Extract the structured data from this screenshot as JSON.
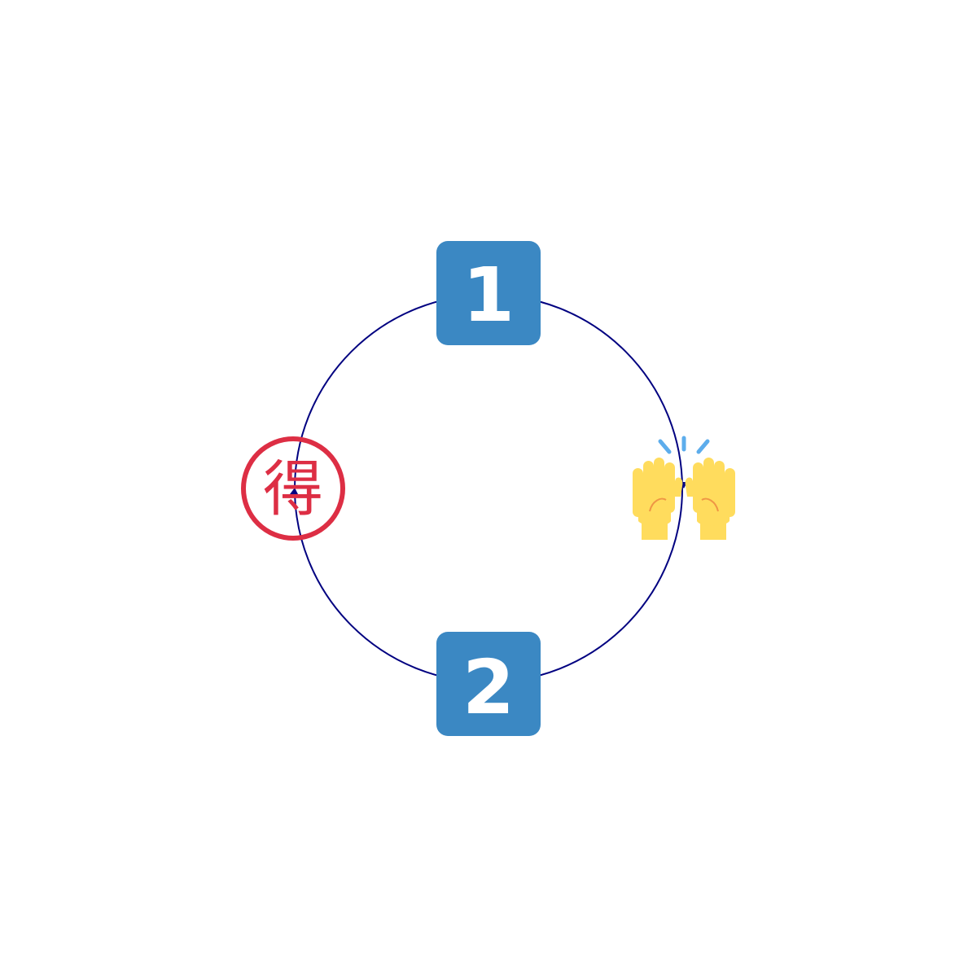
{
  "diagram": {
    "cycle_line_color": "#000080",
    "keycap_color": "#3b88c3",
    "nodes": [
      {
        "position": "top",
        "kind": "keycap-digit",
        "label": "1"
      },
      {
        "position": "right",
        "kind": "emoji",
        "icon": "raising-hands-icon"
      },
      {
        "position": "bottom",
        "kind": "keycap-digit",
        "label": "2"
      },
      {
        "position": "left",
        "kind": "emoji",
        "icon": "circled-ideograph-advantage-icon",
        "label": "得"
      }
    ]
  }
}
